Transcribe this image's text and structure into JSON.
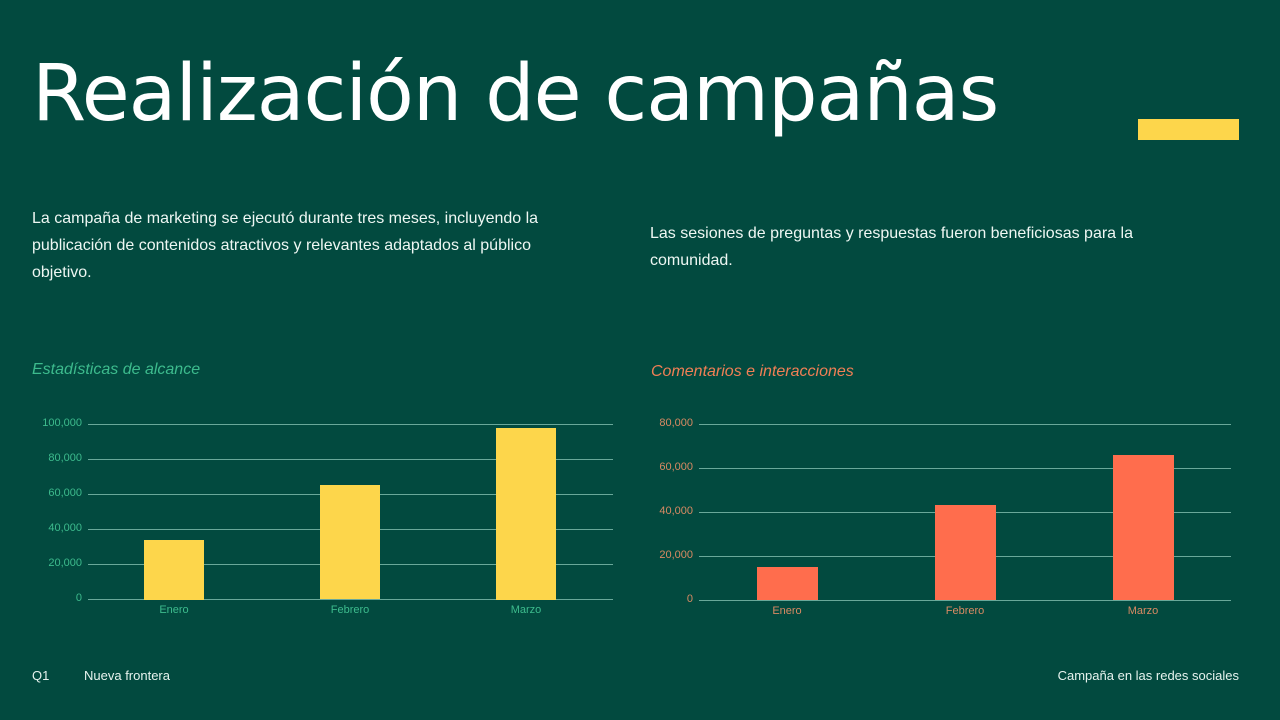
{
  "slide": {
    "title": "Realización de campañas",
    "accent_color": "#fdd64b",
    "background_color": "#024a3f"
  },
  "paragraphs": {
    "left": "La campaña de marketing se ejecutó durante tres meses, incluyendo la publicación de contenidos atractivos y relevantes adaptados al público objetivo.",
    "right": "Las sesiones de preguntas y respuestas fueron beneficiosas para la comunidad."
  },
  "footer": {
    "quarter": "Q1",
    "project": "Nueva frontera",
    "campaign": "Campaña en las redes sociales"
  },
  "chart_data": [
    {
      "type": "bar",
      "title": "Estadísticas de alcance",
      "categories": [
        "Enero",
        "Febrero",
        "Marzo"
      ],
      "values": [
        34000,
        65000,
        98000
      ],
      "xlabel": "",
      "ylabel": "",
      "ylim": [
        0,
        100000
      ],
      "yticks": [
        "0",
        "20,000",
        "40,000",
        "60,000",
        "80,000",
        "100,000"
      ],
      "grid": true,
      "legend": null,
      "bar_color": "#fdd64b",
      "label_color": "#3dbb8d"
    },
    {
      "type": "bar",
      "title": "Comentarios e interacciones",
      "categories": [
        "Enero",
        "Febrero",
        "Marzo"
      ],
      "values": [
        15000,
        43000,
        66000
      ],
      "xlabel": "",
      "ylabel": "",
      "ylim": [
        0,
        80000
      ],
      "yticks": [
        "0",
        "20,000",
        "40,000",
        "60,000",
        "80,000"
      ],
      "grid": true,
      "legend": null,
      "bar_color": "#ff6d4d",
      "label_color": "#d98a63"
    }
  ]
}
